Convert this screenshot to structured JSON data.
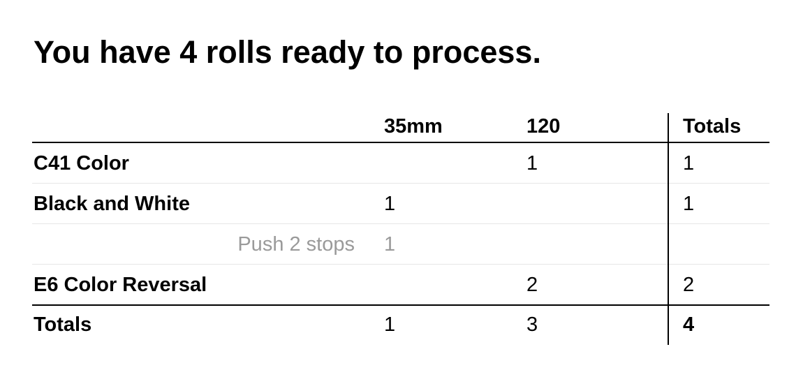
{
  "headline": "You have 4 rolls ready to process.",
  "table": {
    "columns": {
      "col_35mm": "35mm",
      "col_120": "120",
      "col_totals": "Totals"
    },
    "rows": [
      {
        "label": "C41 Color",
        "mm35": "",
        "mm120": "1",
        "total": "1"
      },
      {
        "label": "Black and White",
        "mm35": "1",
        "mm120": "",
        "total": "1"
      },
      {
        "sub_label": "Push 2 stops",
        "mm35": "1",
        "mm120": "",
        "total": ""
      },
      {
        "label": "E6 Color Reversal",
        "mm35": "",
        "mm120": "2",
        "total": "2"
      }
    ],
    "totals": {
      "label": "Totals",
      "mm35": "1",
      "mm120": "3",
      "total": "4"
    }
  }
}
